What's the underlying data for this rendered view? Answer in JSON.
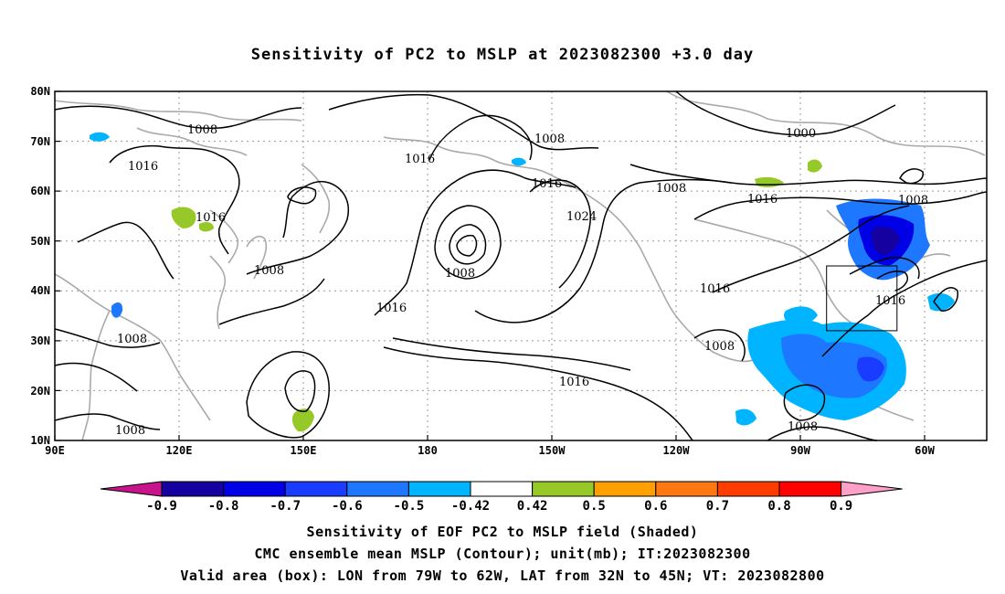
{
  "title": "Sensitivity of PC2 to MSLP at 2023082300 +3.0 day",
  "lat_ticks": [
    "80N",
    "70N",
    "60N",
    "50N",
    "40N",
    "30N",
    "20N",
    "10N"
  ],
  "lon_ticks": [
    "90E",
    "120E",
    "150E",
    "180",
    "150W",
    "120W",
    "90W",
    "60W"
  ],
  "contour_labels": {
    "c1": "1008",
    "c2": "1016",
    "c3": "1016",
    "c4": "1008",
    "c5": "1016",
    "c6": "1008",
    "c7": "1008",
    "c8": "1016",
    "c9": "1008",
    "c10": "1016",
    "c11": "1024",
    "c12": "1008",
    "c13": "1016",
    "c14": "1008",
    "c15": "1000",
    "c16": "1008",
    "c17": "1016",
    "c18": "1008",
    "c19": "1016",
    "c20": "1016",
    "c21": "1008",
    "c22": "1008"
  },
  "colorbar": {
    "labels": [
      "-0.9",
      "-0.8",
      "-0.7",
      "-0.6",
      "-0.5",
      "-0.42",
      "0.42",
      "0.5",
      "0.6",
      "0.7",
      "0.8",
      "0.9"
    ],
    "colors": [
      "#1500a0",
      "#0000e6",
      "#1a3cff",
      "#1e78ff",
      "#00b4ff",
      "#ffffff",
      "#96c828",
      "#ffa000",
      "#ff7814",
      "#ff3c00",
      "#ff0000"
    ],
    "left_end_color": "#c8148c",
    "right_end_color": "#ffa0c8"
  },
  "caption": {
    "line1": "Sensitivity of EOF PC2 to MSLP field (Shaded)",
    "line2": "CMC ensemble mean MSLP (Contour); unit(mb); IT:2023082300",
    "line3": "Valid area (box): LON from 79W to 62W, LAT from 32N to 45N; VT: 2023082800"
  }
}
